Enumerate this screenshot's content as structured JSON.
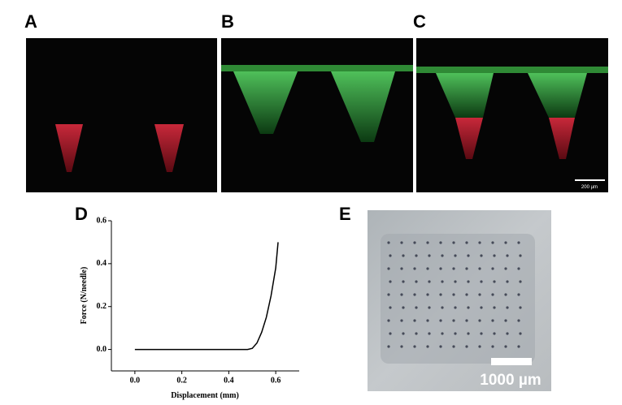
{
  "panels": {
    "a": "A",
    "b": "B",
    "c": "C",
    "d": "D",
    "e": "E"
  },
  "scale_bars": {
    "top": "200 µm",
    "e": "1000 µm"
  },
  "chart_data": {
    "type": "line",
    "x_label": "Displacement (mm)",
    "y_label": "Force (N/needle)",
    "x": [
      0,
      0.1,
      0.2,
      0.3,
      0.4,
      0.48,
      0.5,
      0.52,
      0.54,
      0.56,
      0.58,
      0.6,
      0.61
    ],
    "values": [
      0,
      0,
      0,
      0,
      0,
      0,
      0.005,
      0.03,
      0.08,
      0.15,
      0.25,
      0.38,
      0.5
    ],
    "color": "#000000",
    "xlim": [
      -0.1,
      0.7
    ],
    "ylim": [
      -0.1,
      0.6
    ],
    "xticks": [
      {
        "value": 0,
        "label": "0.0"
      },
      0.2,
      0.4,
      0.6
    ],
    "yticks": [
      {
        "value": 0,
        "label": "0.0"
      },
      0.2,
      0.4,
      0.6
    ]
  }
}
